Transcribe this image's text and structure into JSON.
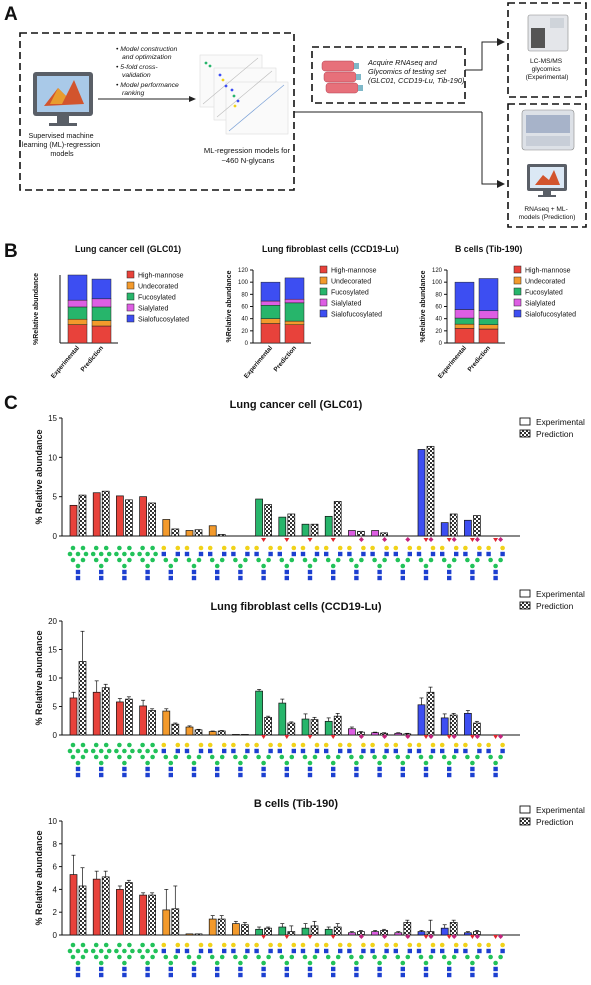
{
  "colors": {
    "high_mannose": "#e8423b",
    "undecorated": "#f39a2c",
    "fucosylated": "#27b56b",
    "sialylated": "#dd5ee3",
    "sialofucosylated": "#3d4ef2",
    "glcnac": "#1c3fd0",
    "mannose": "#22c25a",
    "galactose": "#f0d21a",
    "fucose": "#e0262f",
    "sialic": "#c4247e"
  },
  "panel_a": {
    "label": "A",
    "matlab_caption": "Supervised machine learning (ML)-regression models",
    "bullets": [
      "Model construction and optimization",
      "5-fold cross-validation",
      "Model performance ranking"
    ],
    "ml_caption": "ML-regression models for ~460 N-glycans",
    "acquire_text": "Acquire RNAseq and Glycomics of testing set (GLC01, CCD19-Lu, Tib-190)",
    "lcms_caption": "LC-MS/MS glycomics (Experimental)",
    "rnaseq_caption": "RNAseq + ML-models (Prediction)"
  },
  "panel_b_label": "B",
  "panel_c_label": "C",
  "chart_data": [
    {
      "type": "bar",
      "stacked": true,
      "title": "Lung cancer cell (GLC01)",
      "ylabel": "%Relative abundance",
      "categories": [
        "Experimental",
        "Prediction"
      ],
      "ylim": [
        0,
        100
      ],
      "yticks": [],
      "series": [
        {
          "name": "High-mannose",
          "values": [
            27,
            25
          ]
        },
        {
          "name": "Undecorated",
          "values": [
            8,
            8
          ]
        },
        {
          "name": "Fucosylated",
          "values": [
            18,
            20
          ]
        },
        {
          "name": "Sialylated",
          "values": [
            10,
            12
          ]
        },
        {
          "name": "Sialofucosylated",
          "values": [
            37,
            29
          ]
        }
      ],
      "legend_position": "right"
    },
    {
      "type": "bar",
      "stacked": true,
      "title": "Lung fibroblast cells (CCD19-Lu)",
      "ylabel": "%Relative abundance",
      "categories": [
        "Experimental",
        "Prediction"
      ],
      "ylim": [
        0,
        120
      ],
      "yticks": [
        "0",
        "20",
        "40",
        "60",
        "80",
        "100",
        "120"
      ],
      "series": [
        {
          "name": "High-mannose",
          "values": [
            32,
            30
          ]
        },
        {
          "name": "Undecorated",
          "values": [
            8,
            6
          ]
        },
        {
          "name": "Fucosylated",
          "values": [
            22,
            30
          ]
        },
        {
          "name": "Sialylated",
          "values": [
            7,
            6
          ]
        },
        {
          "name": "Sialofucosylated",
          "values": [
            31,
            35
          ]
        }
      ],
      "legend_position": "right"
    },
    {
      "type": "bar",
      "stacked": true,
      "title": "B cells (Tib-190)",
      "ylabel": "%Relative abundance",
      "categories": [
        "Experimental",
        "Prediction"
      ],
      "ylim": [
        0,
        120
      ],
      "yticks": [
        "0",
        "20",
        "40",
        "60",
        "80",
        "100",
        "120"
      ],
      "series": [
        {
          "name": "High-mannose",
          "values": [
            24,
            23
          ]
        },
        {
          "name": "Undecorated",
          "values": [
            7,
            7
          ]
        },
        {
          "name": "Fucosylated",
          "values": [
            10,
            10
          ]
        },
        {
          "name": "Sialylated",
          "values": [
            14,
            13
          ]
        },
        {
          "name": "Sialofucosylated",
          "values": [
            45,
            53
          ]
        }
      ],
      "legend_position": "right"
    },
    {
      "type": "bar",
      "title": "Lung cancer cell (GLC01)",
      "ylabel": "% Relative abundance",
      "ylim": [
        0,
        15
      ],
      "yticks": [
        "0",
        "5",
        "10",
        "15"
      ],
      "legend": [
        "Experimental",
        "Prediction"
      ],
      "groups": [
        "high_mannose",
        "high_mannose",
        "high_mannose",
        "high_mannose",
        "undecorated",
        "undecorated",
        "undecorated",
        "undecorated",
        "fucosylated",
        "fucosylated",
        "fucosylated",
        "fucosylated",
        "sialylated",
        "sialylated",
        "sialylated",
        "sialofucosylated",
        "sialofucosylated",
        "sialofucosylated",
        "sialofucosylated"
      ],
      "series": [
        {
          "name": "Experimental",
          "values": [
            3.9,
            5.5,
            5.1,
            5.0,
            2.1,
            0.7,
            1.3,
            0.0,
            4.7,
            2.4,
            1.5,
            2.5,
            0.7,
            0.7,
            0.0,
            11.0,
            1.7,
            2.0,
            0.0
          ]
        },
        {
          "name": "Prediction",
          "values": [
            5.2,
            5.7,
            4.6,
            4.2,
            0.9,
            0.8,
            0.2,
            0.0,
            4.0,
            2.8,
            1.5,
            4.4,
            0.6,
            0.4,
            0.0,
            11.4,
            2.8,
            2.6,
            0.0
          ]
        }
      ]
    },
    {
      "type": "bar",
      "title": "Lung fibroblast cells (CCD19-Lu)",
      "ylabel": "% Relative abundance",
      "ylim": [
        0,
        20
      ],
      "yticks": [
        "0",
        "5",
        "10",
        "15",
        "20"
      ],
      "legend": [
        "Experimental",
        "Prediction"
      ],
      "groups": [
        "high_mannose",
        "high_mannose",
        "high_mannose",
        "high_mannose",
        "undecorated",
        "undecorated",
        "undecorated",
        "undecorated",
        "fucosylated",
        "fucosylated",
        "fucosylated",
        "fucosylated",
        "sialylated",
        "sialylated",
        "sialylated",
        "sialofucosylated",
        "sialofucosylated",
        "sialofucosylated",
        "sialofucosylated"
      ],
      "series": [
        {
          "name": "Experimental",
          "values": [
            6.5,
            7.5,
            5.8,
            5.1,
            4.2,
            1.4,
            0.6,
            0.1,
            7.7,
            5.6,
            2.8,
            2.4,
            1.1,
            0.4,
            0.3,
            5.3,
            3.0,
            3.8,
            0.0
          ]
        },
        {
          "name": "Prediction",
          "values": [
            12.9,
            8.3,
            6.3,
            4.3,
            1.9,
            0.9,
            0.7,
            0.1,
            3.1,
            2.1,
            2.7,
            3.3,
            0.5,
            0.3,
            0.2,
            7.5,
            3.5,
            2.1,
            0.0
          ]
        },
        {
          "name": "Experimental error",
          "values": [
            1.0,
            2.0,
            0.6,
            1.0,
            0.4,
            0.2,
            0.1,
            0.0,
            0.3,
            0.7,
            0.9,
            0.6,
            0.3,
            0.1,
            0.1,
            1.2,
            0.7,
            0.5,
            0.0
          ]
        },
        {
          "name": "Prediction error",
          "values": [
            5.3,
            0.6,
            0.4,
            0.3,
            0.2,
            0.1,
            0.1,
            0.0,
            0.2,
            0.2,
            0.4,
            0.5,
            0.1,
            0.1,
            0.1,
            0.9,
            0.3,
            0.3,
            0.0
          ]
        }
      ]
    },
    {
      "type": "bar",
      "title": "B cells (Tib-190)",
      "ylabel": "% Relative abundance",
      "ylim": [
        0,
        10
      ],
      "yticks": [
        "0",
        "2",
        "4",
        "6",
        "8",
        "10"
      ],
      "legend": [
        "Experimental",
        "Prediction"
      ],
      "groups": [
        "high_mannose",
        "high_mannose",
        "high_mannose",
        "high_mannose",
        "undecorated",
        "undecorated",
        "undecorated",
        "undecorated",
        "fucosylated",
        "fucosylated",
        "fucosylated",
        "fucosylated",
        "sialylated",
        "sialylated",
        "sialylated",
        "sialofucosylated",
        "sialofucosylated",
        "sialofucosylated",
        "sialofucosylated"
      ],
      "series": [
        {
          "name": "Experimental",
          "values": [
            5.3,
            4.9,
            4.0,
            3.5,
            2.2,
            0.1,
            1.4,
            1.0,
            0.5,
            0.7,
            0.6,
            0.5,
            0.2,
            0.3,
            0.2,
            0.3,
            0.6,
            0.2,
            0.0
          ]
        },
        {
          "name": "Prediction",
          "values": [
            4.3,
            5.1,
            4.6,
            3.5,
            2.3,
            0.1,
            1.4,
            0.9,
            0.6,
            0.3,
            0.8,
            0.7,
            0.3,
            0.4,
            1.1,
            0.3,
            1.1,
            0.3,
            0.0
          ]
        },
        {
          "name": "Experimental error",
          "values": [
            1.7,
            0.7,
            0.3,
            0.2,
            1.8,
            0.0,
            0.3,
            0.2,
            0.2,
            0.3,
            0.4,
            0.2,
            0.1,
            0.1,
            0.1,
            0.1,
            0.3,
            0.1,
            0.0
          ]
        },
        {
          "name": "Prediction error",
          "values": [
            1.6,
            0.5,
            0.2,
            0.2,
            2.0,
            0.0,
            0.3,
            0.2,
            0.1,
            0.5,
            0.4,
            0.3,
            0.1,
            0.1,
            0.2,
            1.0,
            0.2,
            0.1,
            0.0
          ]
        }
      ]
    }
  ]
}
